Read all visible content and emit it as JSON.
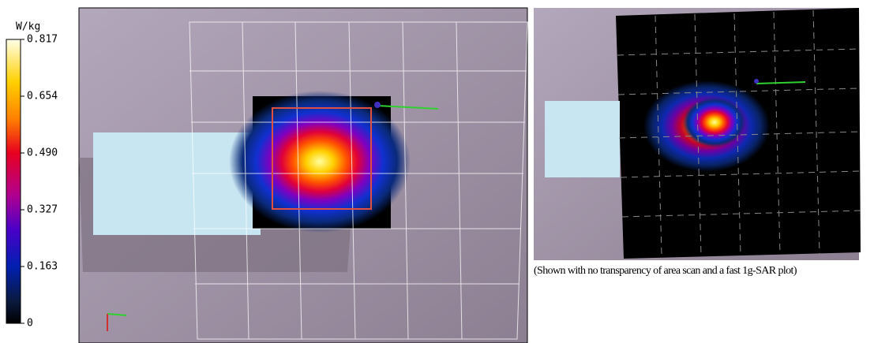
{
  "colorbar": {
    "unit": "W/kg",
    "ticks": [
      "0.817",
      "0.654",
      "0.490",
      "0.327",
      "0.163",
      "0"
    ]
  },
  "caption": "(Shown with no transparency of area scan and a fast 1g-SAR plot)"
}
